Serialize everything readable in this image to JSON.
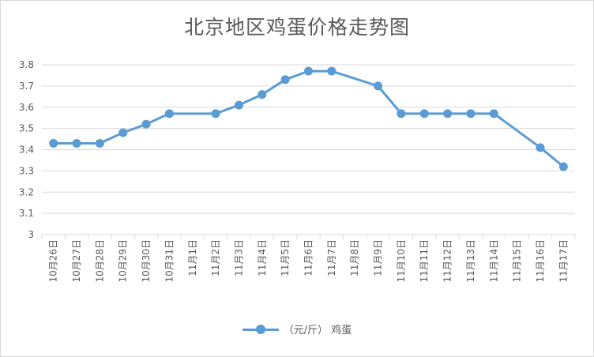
{
  "chart_data": {
    "type": "line",
    "title": "北京地区鸡蛋价格走势图",
    "categories": [
      "10月26日",
      "10月27日",
      "10月28日",
      "10月29日",
      "10月30日",
      "10月31日",
      "11月1日",
      "11月2日",
      "11月3日",
      "11月4日",
      "11月5日",
      "11月6日",
      "11月7日",
      "11月8日",
      "11月9日",
      "11月10日",
      "11月11日",
      "11月12日",
      "11月13日",
      "11月14日",
      "11月15日",
      "11月16日",
      "11月17日"
    ],
    "series": [
      {
        "name": "（元/斤） 鸡蛋",
        "color": "#5b9bd5",
        "values": [
          3.43,
          3.43,
          3.43,
          3.48,
          3.52,
          3.57,
          null,
          3.57,
          3.61,
          3.66,
          3.73,
          3.77,
          3.77,
          null,
          3.7,
          3.57,
          3.57,
          3.57,
          3.57,
          3.57,
          null,
          3.41,
          3.32
        ]
      }
    ],
    "ylim": [
      3,
      3.8
    ],
    "yticks": [
      "3",
      "3.1",
      "3.2",
      "3.3",
      "3.4",
      "3.5",
      "3.6",
      "3.7",
      "3.8"
    ],
    "grid": true,
    "legend": "bottom",
    "xlabel": "",
    "ylabel": ""
  }
}
